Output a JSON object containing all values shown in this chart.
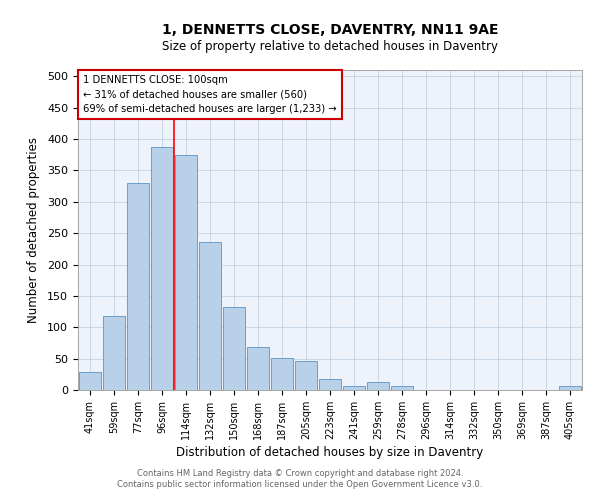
{
  "title": "1, DENNETTS CLOSE, DAVENTRY, NN11 9AE",
  "subtitle": "Size of property relative to detached houses in Daventry",
  "xlabel": "Distribution of detached houses by size in Daventry",
  "ylabel": "Number of detached properties",
  "categories": [
    "41sqm",
    "59sqm",
    "77sqm",
    "96sqm",
    "114sqm",
    "132sqm",
    "150sqm",
    "168sqm",
    "187sqm",
    "205sqm",
    "223sqm",
    "241sqm",
    "259sqm",
    "278sqm",
    "296sqm",
    "314sqm",
    "332sqm",
    "350sqm",
    "369sqm",
    "387sqm",
    "405sqm"
  ],
  "values": [
    28,
    118,
    330,
    387,
    375,
    236,
    133,
    68,
    51,
    46,
    18,
    6,
    13,
    6,
    0,
    0,
    0,
    0,
    0,
    0,
    6
  ],
  "bar_color": "#b8d0e8",
  "bar_edge_color": "#6aa0cc",
  "grid_color": "#c8d8e8",
  "bg_color": "#eef2fa",
  "red_line_x": 3.5,
  "annotation_text": "1 DENNETTS CLOSE: 100sqm\n← 31% of detached houses are smaller (560)\n69% of semi-detached houses are larger (1,233) →",
  "annotation_box_color": "#ffffff",
  "annotation_border_color": "#cc0000",
  "footer_line1": "Contains HM Land Registry data © Crown copyright and database right 2024.",
  "footer_line2": "Contains public sector information licensed under the Open Government Licence v3.0.",
  "ylim": [
    0,
    510
  ],
  "yticks": [
    0,
    50,
    100,
    150,
    200,
    250,
    300,
    350,
    400,
    450,
    500
  ]
}
